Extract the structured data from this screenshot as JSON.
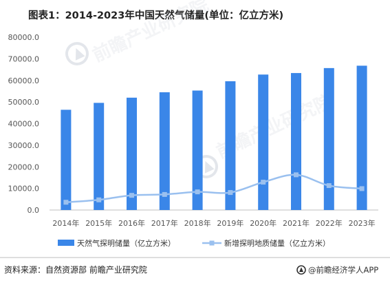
{
  "chart_data": {
    "type": "bar",
    "title": "图表1：2014-2023年中国天然气储量(单位：亿立方米)",
    "categories": [
      "2014年",
      "2015年",
      "2016年",
      "2017年",
      "2018年",
      "2019年",
      "2020年",
      "2021年",
      "2022年",
      "2023年"
    ],
    "series": [
      {
        "name": "天然气探明储量（亿立方米）",
        "type": "bar",
        "color": "#3a86e8",
        "values": [
          46400,
          49600,
          52000,
          54500,
          55300,
          59600,
          62700,
          63400,
          65700,
          66800
        ]
      },
      {
        "name": "新增探明地质储量（亿立方米）",
        "type": "line",
        "color": "#9ac0ef",
        "values": [
          3600,
          4700,
          6800,
          7200,
          8400,
          8100,
          12900,
          16300,
          11300,
          9900
        ]
      }
    ],
    "y_ticks": [
      "0.0",
      "10000.0",
      "20000.0",
      "30000.0",
      "40000.0",
      "50000.0",
      "60000.0",
      "70000.0",
      "80000.0"
    ],
    "ylim": [
      0,
      80000
    ],
    "xlabel": "",
    "ylabel": "",
    "legend_position": "bottom",
    "grid": false
  },
  "footer": {
    "source": "资料来源：自然资源部 前瞻产业研究院",
    "brand": "@前瞻经济学人APP"
  },
  "watermark": {
    "text1": "前瞻产业研究院",
    "text2": "前瞻产业研究院"
  }
}
